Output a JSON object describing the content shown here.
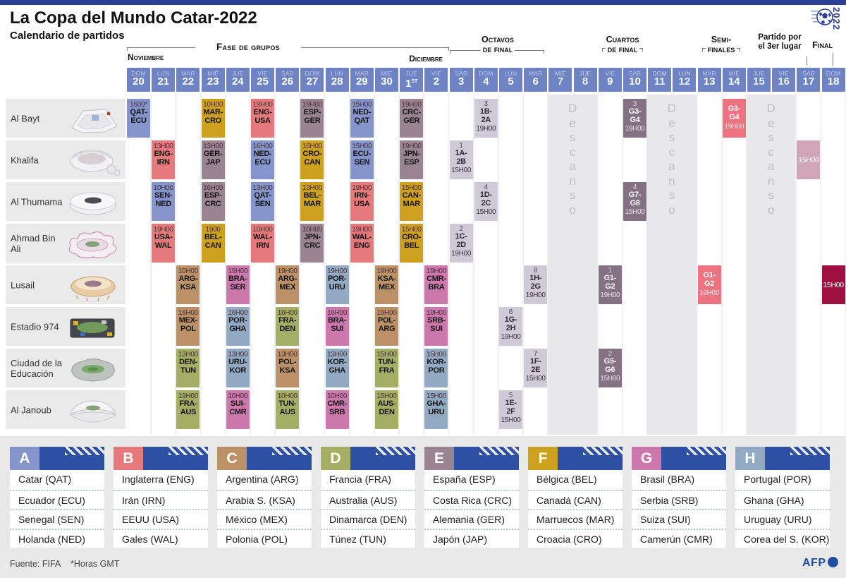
{
  "meta": {
    "title": "La Copa del Mundo Catar-2022",
    "subtitle": "Calendario de partidos",
    "source": "Fuente: FIFA",
    "gmt_note": "*Horas GMT",
    "afp_label": "AFP",
    "logo_year": "2022"
  },
  "phases": {
    "group_stage": "Fase de grupos",
    "november": "Noviembre",
    "december": "Diciembre",
    "round16_line1": "Octavos",
    "round16_line2": "de final",
    "quarters_line1": "Cuartos",
    "quarters_line2": "de final",
    "semis_line1": "Semi-",
    "semis_line2": "finales",
    "third_line1": "Partido por",
    "third_line2": "el 3er lugar",
    "final": "Final",
    "rest": "Descanso"
  },
  "colors": {
    "accent_blue": "#2d50a5",
    "topbar_blue": "#2c3f96",
    "day_header_bg": "#6d83c3",
    "groups": {
      "A": "#8594cb",
      "B": "#e5797c",
      "C": "#bd9167",
      "D": "#a4ae65",
      "E": "#9b8491",
      "F": "#cda01f",
      "G": "#cd78ad",
      "H": "#92a9c3"
    },
    "r16_bg": "#cfc9d8",
    "qf_bg": "#847183",
    "sf_bg": "#ee7380",
    "third_bg": "#d2a5b6",
    "final_bg": "#9d1040"
  },
  "calendar": {
    "days": [
      {
        "dow": "DOM",
        "num": "20"
      },
      {
        "dow": "LUN",
        "num": "21"
      },
      {
        "dow": "MAR",
        "num": "22"
      },
      {
        "dow": "MIÉ",
        "num": "23"
      },
      {
        "dow": "JUE",
        "num": "24"
      },
      {
        "dow": "VIE",
        "num": "25"
      },
      {
        "dow": "SÁB",
        "num": "26"
      },
      {
        "dow": "DOM",
        "num": "27"
      },
      {
        "dow": "LUN",
        "num": "28"
      },
      {
        "dow": "MAR",
        "num": "29"
      },
      {
        "dow": "MIÉ",
        "num": "30"
      },
      {
        "dow": "JUE",
        "num": "1",
        "sup": "ST"
      },
      {
        "dow": "VIE",
        "num": "2"
      },
      {
        "dow": "SÁB",
        "num": "3"
      },
      {
        "dow": "DOM",
        "num": "4"
      },
      {
        "dow": "LUN",
        "num": "5"
      },
      {
        "dow": "MAR",
        "num": "6"
      },
      {
        "dow": "MIÉ",
        "num": "7",
        "muted": true
      },
      {
        "dow": "JUE",
        "num": "8",
        "muted": true
      },
      {
        "dow": "VIE",
        "num": "9"
      },
      {
        "dow": "SÁB",
        "num": "10"
      },
      {
        "dow": "DOM",
        "num": "11",
        "muted": true
      },
      {
        "dow": "LUN",
        "num": "12",
        "muted": true
      },
      {
        "dow": "MAR",
        "num": "13"
      },
      {
        "dow": "MIÉ",
        "num": "14"
      },
      {
        "dow": "JUE",
        "num": "15",
        "muted": true
      },
      {
        "dow": "VIE",
        "num": "16",
        "muted": true
      },
      {
        "dow": "SÁB",
        "num": "17"
      },
      {
        "dow": "DOM",
        "num": "18"
      }
    ],
    "rest_bands": [
      [
        "7",
        "8"
      ],
      [
        "11",
        "12"
      ],
      [
        "15",
        "16"
      ]
    ]
  },
  "stadiums": [
    {
      "name": "Al Bayt",
      "icon": "al-bayt-stadium-icon"
    },
    {
      "name": "Khalifa",
      "icon": "khalifa-stadium-icon"
    },
    {
      "name": "Al Thumama",
      "icon": "al-thumama-stadium-icon"
    },
    {
      "name": "Ahmad Bin Ali",
      "icon": "ahmad-bin-ali-stadium-icon"
    },
    {
      "name": "Lusail",
      "icon": "lusail-stadium-icon"
    },
    {
      "name": "Estadio 974",
      "icon": "estadio-974-stadium-icon"
    },
    {
      "name": "Ciudad de la Educación",
      "icon": "ciudad-educacion-stadium-icon"
    },
    {
      "name": "Al Janoub",
      "icon": "al-janoub-stadium-icon"
    }
  ],
  "matches": [
    {
      "row": 0,
      "day": "20",
      "time": "1600*",
      "teams": "QAT-ECU",
      "group": "A"
    },
    {
      "row": 0,
      "day": "23",
      "time": "10H00",
      "teams": "MAR-CRO",
      "group": "F"
    },
    {
      "row": 0,
      "day": "25",
      "time": "19H00",
      "teams": "ENG-USA",
      "group": "B"
    },
    {
      "row": 0,
      "day": "27",
      "time": "19H00",
      "teams": "ESP-GER",
      "group": "E"
    },
    {
      "row": 0,
      "day": "29",
      "time": "15H00",
      "teams": "NED-QAT",
      "group": "A"
    },
    {
      "row": 0,
      "day": "1",
      "time": "19H00",
      "teams": "CRC-GER",
      "group": "E"
    },
    {
      "row": 1,
      "day": "21",
      "time": "13H00",
      "teams": "ENG-IRN",
      "group": "B"
    },
    {
      "row": 1,
      "day": "23",
      "time": "13H00",
      "teams": "GER-JAP",
      "group": "E"
    },
    {
      "row": 1,
      "day": "25",
      "time": "16H00",
      "teams": "NED-ECU",
      "group": "A"
    },
    {
      "row": 1,
      "day": "27",
      "time": "16H00",
      "teams": "CRO-CAN",
      "group": "F"
    },
    {
      "row": 1,
      "day": "29",
      "time": "15H00",
      "teams": "ECU-SEN",
      "group": "A"
    },
    {
      "row": 1,
      "day": "1",
      "time": "19H00",
      "teams": "JPN-ESP",
      "group": "E"
    },
    {
      "row": 2,
      "day": "21",
      "time": "10H00",
      "teams": "SEN-NED",
      "group": "A"
    },
    {
      "row": 2,
      "day": "23",
      "time": "16H00",
      "teams": "ESP-CRC",
      "group": "E"
    },
    {
      "row": 2,
      "day": "25",
      "time": "13H00",
      "teams": "QAT-SEN",
      "group": "A"
    },
    {
      "row": 2,
      "day": "27",
      "time": "13H00",
      "teams": "BEL-MAR",
      "group": "F"
    },
    {
      "row": 2,
      "day": "29",
      "time": "19H00",
      "teams": "IRN-USA",
      "group": "B"
    },
    {
      "row": 2,
      "day": "1",
      "time": "15H00",
      "teams": "CAN-MAR",
      "group": "F"
    },
    {
      "row": 3,
      "day": "21",
      "time": "19H00",
      "teams": "USA-WAL",
      "group": "B"
    },
    {
      "row": 3,
      "day": "23",
      "time": "1900",
      "teams": "BEL-CAN",
      "group": "F"
    },
    {
      "row": 3,
      "day": "25",
      "time": "10H00",
      "teams": "WAL-IRN",
      "group": "B"
    },
    {
      "row": 3,
      "day": "27",
      "time": "10H00",
      "teams": "JPN-CRC",
      "group": "E"
    },
    {
      "row": 3,
      "day": "29",
      "time": "19H00",
      "teams": "WAL-ENG",
      "group": "B"
    },
    {
      "row": 3,
      "day": "1",
      "time": "15H00",
      "teams": "CRO-BEL",
      "group": "F"
    },
    {
      "row": 4,
      "day": "22",
      "time": "10H00",
      "teams": "ARG-KSA",
      "group": "C"
    },
    {
      "row": 4,
      "day": "24",
      "time": "19H00",
      "teams": "BRA-SER",
      "group": "G"
    },
    {
      "row": 4,
      "day": "26",
      "time": "19H00",
      "teams": "ARG-MEX",
      "group": "C"
    },
    {
      "row": 4,
      "day": "28",
      "time": "19H00",
      "teams": "POR-URU",
      "group": "H"
    },
    {
      "row": 4,
      "day": "30",
      "time": "19H00",
      "teams": "KSA-MEX",
      "group": "C"
    },
    {
      "row": 4,
      "day": "2",
      "time": "19H00",
      "teams": "CMR-BRA",
      "group": "G"
    },
    {
      "row": 5,
      "day": "22",
      "time": "16H00",
      "teams": "MEX-POL",
      "group": "C"
    },
    {
      "row": 5,
      "day": "24",
      "time": "16H00",
      "teams": "POR-GHA",
      "group": "H"
    },
    {
      "row": 5,
      "day": "26",
      "time": "16H00",
      "teams": "FRA-DEN",
      "group": "D"
    },
    {
      "row": 5,
      "day": "28",
      "time": "16H00",
      "teams": "BRA-SUI",
      "group": "G"
    },
    {
      "row": 5,
      "day": "30",
      "time": "19H00",
      "teams": "POL-ARG",
      "group": "C"
    },
    {
      "row": 5,
      "day": "2",
      "time": "19H00",
      "teams": "SRB-SUI",
      "group": "G"
    },
    {
      "row": 6,
      "day": "22",
      "time": "13H00",
      "teams": "DEN-TUN",
      "group": "D"
    },
    {
      "row": 6,
      "day": "24",
      "time": "13H00",
      "teams": "URU-KOR",
      "group": "H"
    },
    {
      "row": 6,
      "day": "26",
      "time": "13H00",
      "teams": "POL-KSA",
      "group": "C"
    },
    {
      "row": 6,
      "day": "28",
      "time": "13H00",
      "teams": "KOR-GHA",
      "group": "H"
    },
    {
      "row": 6,
      "day": "30",
      "time": "15H00",
      "teams": "TUN-FRA",
      "group": "D"
    },
    {
      "row": 6,
      "day": "2",
      "time": "15H00",
      "teams": "KOR-POR",
      "group": "H"
    },
    {
      "row": 7,
      "day": "22",
      "time": "19H00",
      "teams": "FRA-AUS",
      "group": "D"
    },
    {
      "row": 7,
      "day": "24",
      "time": "10H00",
      "teams": "SUI-CMR",
      "group": "G"
    },
    {
      "row": 7,
      "day": "26",
      "time": "10H00",
      "teams": "TUN-AUS",
      "group": "D"
    },
    {
      "row": 7,
      "day": "28",
      "time": "10H00",
      "teams": "CMR-SRB",
      "group": "G"
    },
    {
      "row": 7,
      "day": "30",
      "time": "15H00",
      "teams": "AUS-DEN",
      "group": "D"
    },
    {
      "row": 7,
      "day": "2",
      "time": "15H00",
      "teams": "GHA-URU",
      "group": "H"
    }
  ],
  "round_of_16": [
    {
      "row": 0,
      "day": "4",
      "num": "3",
      "teams": "1B-2A",
      "time": "19H00"
    },
    {
      "row": 1,
      "day": "3",
      "num": "1",
      "teams": "1A-2B",
      "time": "15H00"
    },
    {
      "row": 2,
      "day": "4",
      "num": "4",
      "teams": "1D-2C",
      "time": "15H00"
    },
    {
      "row": 3,
      "day": "3",
      "num": "2",
      "teams": "1C-2D",
      "time": "19H00"
    },
    {
      "row": 4,
      "day": "6",
      "num": "8",
      "teams": "1H-2G",
      "time": "19H00"
    },
    {
      "row": 5,
      "day": "5",
      "num": "6",
      "teams": "1G-2H",
      "time": "19H00"
    },
    {
      "row": 6,
      "day": "6",
      "num": "7",
      "teams": "1F-2E",
      "time": "15H00"
    },
    {
      "row": 7,
      "day": "5",
      "num": "5",
      "teams": "1E-2F",
      "time": "15H00"
    }
  ],
  "quarterfinals": [
    {
      "row": 0,
      "day": "10",
      "num": "3",
      "teams": "G3-G4",
      "time": "19H00"
    },
    {
      "row": 2,
      "day": "10",
      "num": "4",
      "teams": "G7-G8",
      "time": "15H00"
    },
    {
      "row": 4,
      "day": "9",
      "num": "1",
      "teams": "G1-G2",
      "time": "19H00"
    },
    {
      "row": 6,
      "day": "9",
      "num": "2",
      "teams": "G5-G6",
      "time": "15H00"
    }
  ],
  "semifinals": [
    {
      "row": 0,
      "day": "14",
      "teams": "G3-G4",
      "time": "19H00"
    },
    {
      "row": 4,
      "day": "13",
      "teams": "G1-G2",
      "time": "19H00"
    }
  ],
  "third_place": {
    "row": 1,
    "day": "17",
    "time": "15H00"
  },
  "final_match": {
    "row": 4,
    "day": "18",
    "time": "15H00"
  },
  "groups": [
    {
      "letter": "A",
      "teams": [
        "Catar (QAT)",
        "Ecuador (ECU)",
        "Senegal (SEN)",
        "Holanda (NED)"
      ]
    },
    {
      "letter": "B",
      "teams": [
        "Inglaterra (ENG)",
        "Irán (IRN)",
        "EEUU (USA)",
        "Gales (WAL)"
      ]
    },
    {
      "letter": "C",
      "teams": [
        "Argentina (ARG)",
        "Arabia S. (KSA)",
        "México (MEX)",
        "Polonia (POL)"
      ]
    },
    {
      "letter": "D",
      "teams": [
        "Francia (FRA)",
        "Australia (AUS)",
        "Dinamarca (DEN)",
        "Túnez (TUN)"
      ]
    },
    {
      "letter": "E",
      "teams": [
        "España (ESP)",
        "Costa Rica (CRC)",
        "Alemania (GER)",
        "Japón (JAP)"
      ]
    },
    {
      "letter": "F",
      "teams": [
        "Bélgica (BEL)",
        "Canadá (CAN)",
        "Marruecos (MAR)",
        "Croacia (CRO)"
      ]
    },
    {
      "letter": "G",
      "teams": [
        "Brasil (BRA)",
        "Serbia (SRB)",
        "Suiza (SUI)",
        "Camerún (CMR)"
      ]
    },
    {
      "letter": "H",
      "teams": [
        "Portugal (POR)",
        "Ghana (GHA)",
        "Uruguay (URU)",
        "Corea del S. (KOR)"
      ]
    }
  ]
}
